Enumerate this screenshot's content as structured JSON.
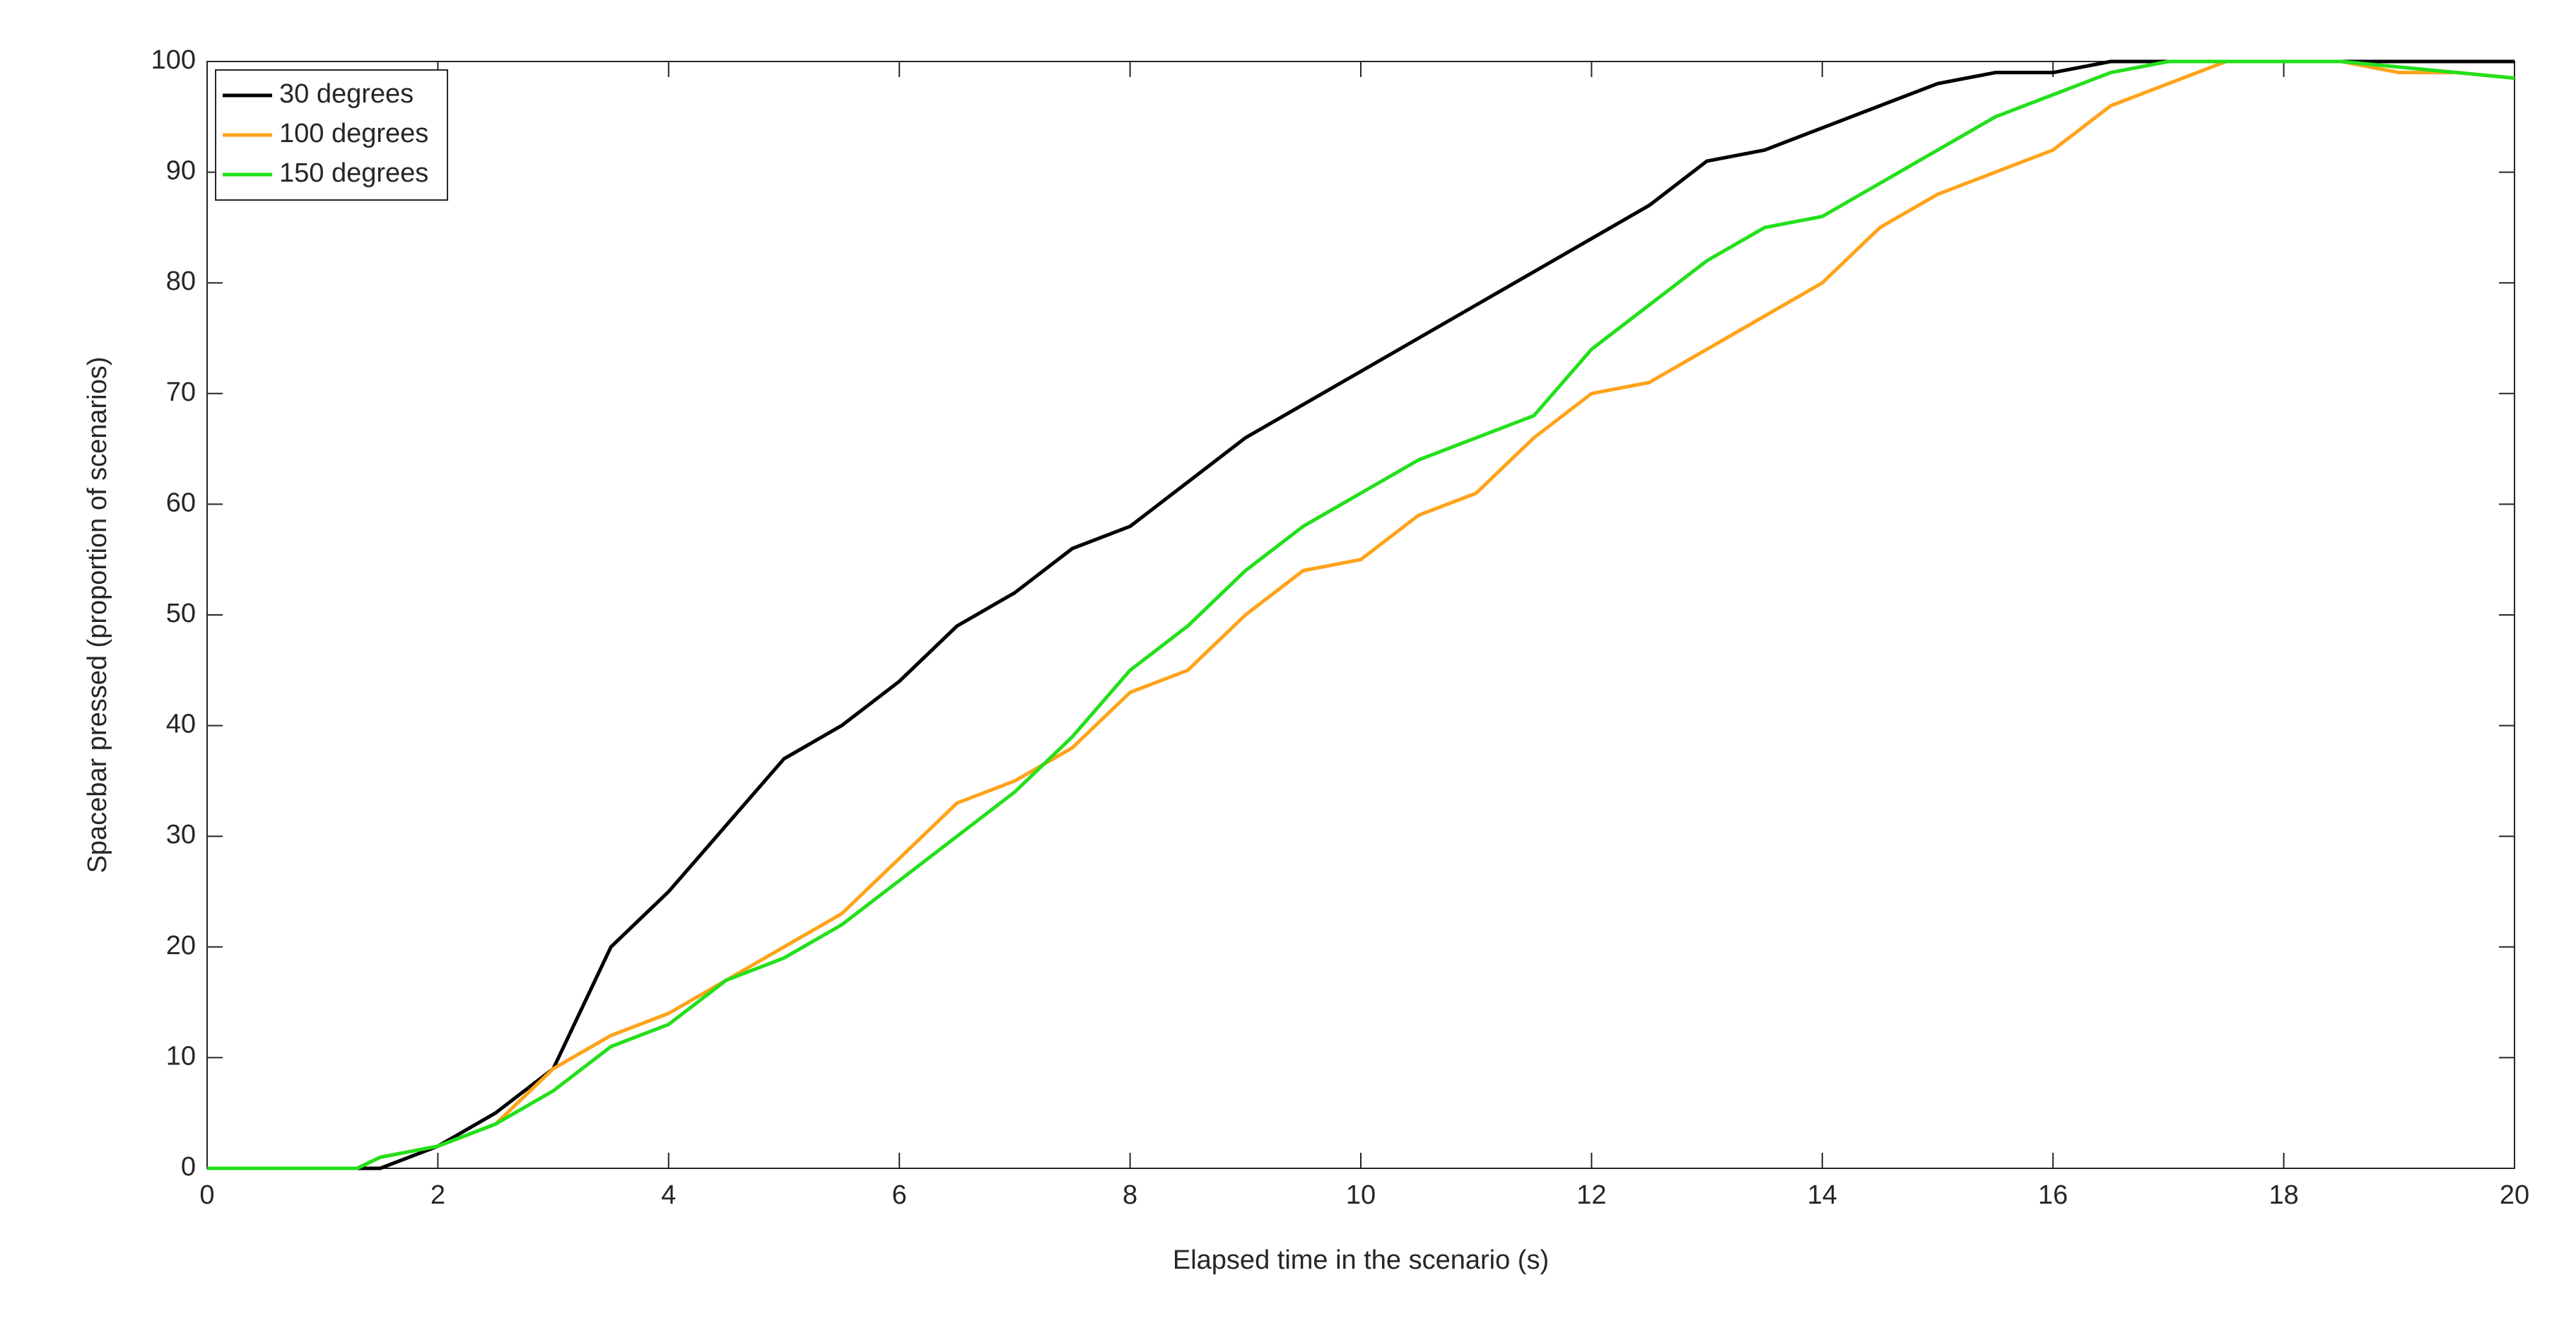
{
  "chart_data": {
    "type": "line",
    "xlabel": "Elapsed time in the scenario (s)",
    "ylabel": "Spacebar pressed (proportion of scenarios)",
    "x": [
      0,
      1.3,
      1.5,
      2,
      2.5,
      3,
      3.5,
      4,
      4.5,
      5,
      5.5,
      6,
      6.5,
      7,
      7.5,
      8,
      8.5,
      9,
      9.5,
      10,
      10.5,
      11,
      11.5,
      12,
      12.5,
      13,
      13.5,
      14,
      14.5,
      15,
      15.5,
      16,
      16.5,
      17,
      17.5,
      18,
      18.5,
      19,
      19.5,
      20
    ],
    "series": [
      {
        "name": "30 degrees",
        "color": "#000000",
        "values": [
          0,
          0,
          0,
          2,
          5,
          9,
          20,
          25,
          31,
          37,
          40,
          44,
          49,
          52,
          56,
          58,
          62,
          66,
          69,
          72,
          75,
          78,
          81,
          84,
          87,
          91,
          92,
          94,
          96,
          98,
          99,
          99,
          100,
          100,
          100,
          100,
          100,
          100,
          100,
          100
        ]
      },
      {
        "name": "100 degrees",
        "color": "#ffa31a",
        "values": [
          0,
          0,
          1,
          2,
          4,
          9,
          12,
          14,
          17,
          20,
          23,
          28,
          33,
          35,
          38,
          43,
          45,
          50,
          54,
          55,
          59,
          61,
          66,
          70,
          71,
          74,
          77,
          80,
          85,
          88,
          90,
          92,
          96,
          98,
          100,
          100,
          100,
          99,
          99,
          98.5
        ]
      },
      {
        "name": "150 degrees",
        "color": "#22e01a",
        "values": [
          0,
          0,
          1,
          2,
          4,
          7,
          11,
          13,
          17,
          19,
          22,
          26,
          30,
          34,
          39,
          45,
          49,
          54,
          58,
          61,
          64,
          66,
          68,
          74,
          78,
          82,
          85,
          86,
          89,
          92,
          95,
          97,
          99,
          100,
          100,
          100,
          100,
          99.5,
          99,
          98.5
        ]
      }
    ],
    "xlim": [
      0,
      20
    ],
    "xticks": [
      0,
      2,
      4,
      6,
      8,
      10,
      12,
      14,
      16,
      18,
      20
    ],
    "ylim": [
      0,
      100
    ],
    "yticks": [
      0,
      10,
      20,
      30,
      40,
      50,
      60,
      70,
      80,
      90,
      100
    ],
    "grid": false,
    "legend": "northwest"
  }
}
